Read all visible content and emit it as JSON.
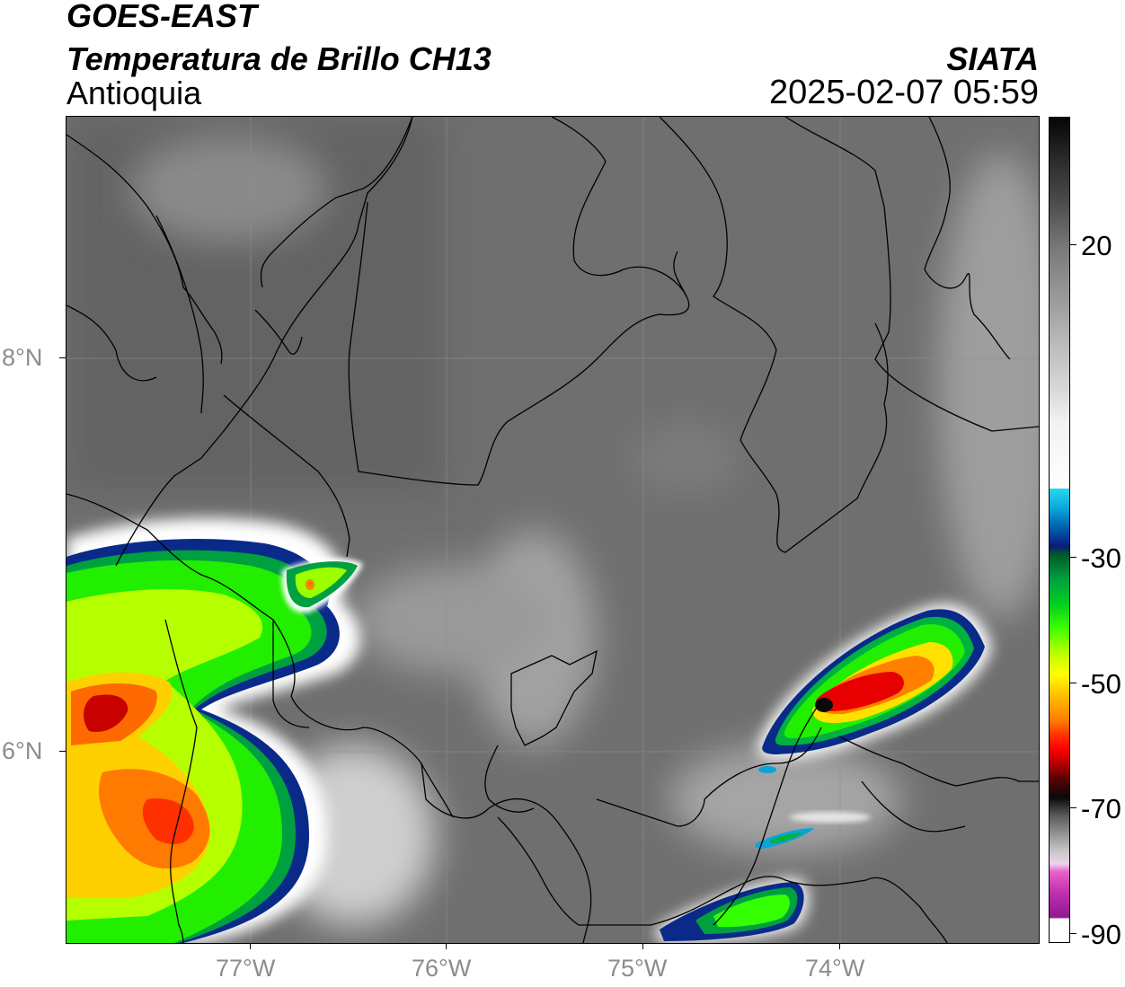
{
  "header": {
    "satellite": "GOES-EAST",
    "product": "Temperatura de Brillo CH13",
    "region": "Antioquia",
    "agency": "SIATA",
    "datetime": "2025-02-07 05:59"
  },
  "map": {
    "lat_labels": [
      "8°N",
      "6°N"
    ],
    "lon_labels": [
      "77°W",
      "76°W",
      "75°W",
      "74°W"
    ],
    "gridlines": true
  },
  "colorbar": {
    "tick_labels": [
      "20",
      "-30",
      "-50",
      "-70",
      "-90"
    ],
    "colors": {
      "warm": "#050505",
      "mid_gray": "#8a8a8a",
      "white": "#ffffff",
      "cyan": "#27d7f0",
      "blue": "#0a1a7a",
      "green": "#00d020",
      "yellow": "#ffff00",
      "orange": "#ff8000",
      "red": "#ff0000",
      "black": "#0a0a0a",
      "magenta": "#c030b0"
    }
  }
}
